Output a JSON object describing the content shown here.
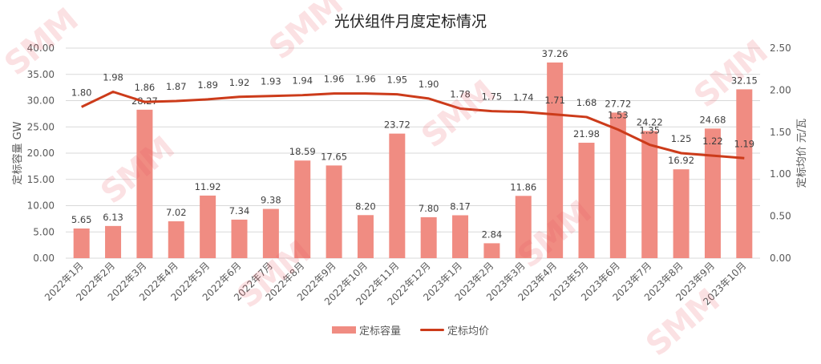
{
  "title": "光伏组件月度定标情况",
  "watermark": "SMM",
  "colors": {
    "bar": "#F08C82",
    "line": "#CC3B1A",
    "grid": "#D9D9D9"
  },
  "legend": [
    {
      "label": "定标容量",
      "type": "bar"
    },
    {
      "label": "定标均价",
      "type": "line"
    }
  ],
  "chart_data": {
    "type": "bar+line",
    "title": "光伏组件月度定标情况",
    "categories": [
      "2022年1月",
      "2022年2月",
      "2022年3月",
      "2022年4月",
      "2022年5月",
      "2022年6月",
      "2022年7月",
      "2022年8月",
      "2022年9月",
      "2022年10月",
      "2022年11月",
      "2022年12月",
      "2023年1月",
      "2023年2月",
      "2023年3月",
      "2023年4月",
      "2023年5月",
      "2023年6月",
      "2023年7月",
      "2023年8月",
      "2023年9月",
      "2023年10月"
    ],
    "series": [
      {
        "name": "定标容量",
        "type": "bar",
        "axis": "left",
        "values": [
          5.65,
          6.13,
          28.27,
          7.02,
          11.92,
          7.34,
          9.38,
          18.59,
          17.65,
          8.2,
          23.72,
          7.8,
          8.17,
          2.84,
          11.86,
          37.26,
          21.98,
          27.72,
          24.22,
          16.92,
          24.68,
          32.15
        ]
      },
      {
        "name": "定标均价",
        "type": "line",
        "axis": "right",
        "values": [
          1.8,
          1.98,
          1.86,
          1.87,
          1.89,
          1.92,
          1.93,
          1.94,
          1.96,
          1.96,
          1.95,
          1.9,
          1.78,
          1.75,
          1.74,
          1.71,
          1.68,
          1.53,
          1.35,
          1.25,
          1.22,
          1.19
        ]
      }
    ],
    "ylabel": "定标容量 GW",
    "y2label": "定标均价 元/瓦",
    "ylim": [
      0,
      40
    ],
    "y2lim": [
      0,
      2.5
    ],
    "yticks": [
      "0.00",
      "5.00",
      "10.00",
      "15.00",
      "20.00",
      "25.00",
      "30.00",
      "35.00",
      "40.00"
    ],
    "y2ticks": [
      "0.00",
      "0.50",
      "1.00",
      "1.50",
      "2.00",
      "2.50"
    ],
    "grid": true,
    "legend_position": "bottom"
  }
}
